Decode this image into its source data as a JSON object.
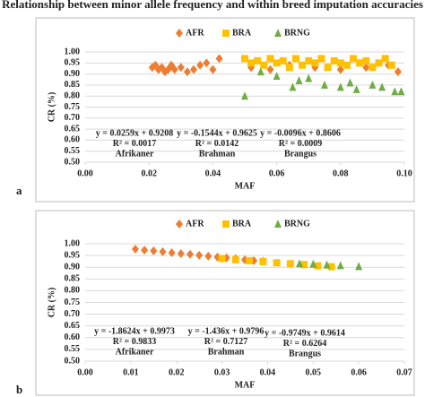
{
  "title": "Relationship between minor allele frequency and within breed imputation accuracies",
  "chart_data": [
    {
      "type": "scatter",
      "panel_label": "a",
      "x_label": "MAF",
      "y_label": "CR (%)",
      "grid": true,
      "xlim": [
        0,
        0.1
      ],
      "xticks": [
        {
          "value": 0,
          "label": "0.00"
        },
        {
          "value": 0.02,
          "label": "0.02"
        },
        {
          "value": 0.04,
          "label": "0.04"
        },
        {
          "value": 0.06,
          "label": "0.06"
        },
        {
          "value": 0.08,
          "label": "0.08"
        },
        {
          "value": 0.1,
          "label": "0.10"
        }
      ],
      "ylim": [
        0.5,
        1
      ],
      "yticks": [
        {
          "value": 0.5,
          "label": "0.50"
        },
        {
          "value": 0.55,
          "label": "0.55"
        },
        {
          "value": 0.6,
          "label": "0.60"
        },
        {
          "value": 0.65,
          "label": "0.65"
        },
        {
          "value": 0.7,
          "label": "0.70"
        },
        {
          "value": 0.75,
          "label": "0.75"
        },
        {
          "value": 0.8,
          "label": "0.80"
        },
        {
          "value": 0.85,
          "label": "0.85"
        },
        {
          "value": 0.9,
          "label": "0.90"
        },
        {
          "value": 0.95,
          "label": "0.95"
        },
        {
          "value": 1,
          "label": "1.00"
        }
      ],
      "series": [
        {
          "name": "AFR",
          "color": "#ed7d31",
          "marker": "diamond",
          "x": [
            0.021,
            0.022,
            0.023,
            0.024,
            0.025,
            0.026,
            0.027,
            0.028,
            0.03,
            0.032,
            0.034,
            0.036,
            0.038,
            0.04,
            0.042,
            0.052,
            0.058,
            0.064,
            0.072,
            0.08,
            0.088,
            0.095,
            0.098
          ],
          "values": [
            0.93,
            0.94,
            0.92,
            0.93,
            0.91,
            0.92,
            0.94,
            0.92,
            0.93,
            0.91,
            0.92,
            0.94,
            0.95,
            0.92,
            0.97,
            0.93,
            0.92,
            0.94,
            0.93,
            0.92,
            0.93,
            0.94,
            0.91
          ]
        },
        {
          "name": "BRA",
          "color": "#ffc000",
          "marker": "square",
          "x": [
            0.05,
            0.052,
            0.054,
            0.056,
            0.058,
            0.06,
            0.062,
            0.064,
            0.066,
            0.068,
            0.07,
            0.072,
            0.074,
            0.076,
            0.078,
            0.08,
            0.082,
            0.084,
            0.086,
            0.088,
            0.09,
            0.092,
            0.094,
            0.096
          ],
          "values": [
            0.97,
            0.95,
            0.96,
            0.94,
            0.97,
            0.95,
            0.96,
            0.93,
            0.97,
            0.94,
            0.96,
            0.95,
            0.97,
            0.93,
            0.96,
            0.95,
            0.94,
            0.97,
            0.95,
            0.96,
            0.93,
            0.95,
            0.97,
            0.94
          ]
        },
        {
          "name": "BRNG",
          "color": "#70ad47",
          "marker": "triangle",
          "x": [
            0.05,
            0.055,
            0.06,
            0.065,
            0.067,
            0.07,
            0.075,
            0.08,
            0.083,
            0.085,
            0.09,
            0.093,
            0.097,
            0.099
          ],
          "values": [
            0.8,
            0.91,
            0.89,
            0.84,
            0.87,
            0.88,
            0.85,
            0.84,
            0.86,
            0.83,
            0.85,
            0.84,
            0.82,
            0.82
          ]
        }
      ],
      "annotations": [
        {
          "equation": "y = 0.0259x + 0.9208",
          "r2": "R² = 0.0017",
          "label": "Afrikaner"
        },
        {
          "equation": "y = -0.1544x + 0.9625",
          "r2": "R² = 0.0142",
          "label": "Brahman"
        },
        {
          "equation": "y = -0.0096x + 0.8606",
          "r2": "R² = 0.0009",
          "label": "Brangus"
        }
      ]
    },
    {
      "type": "scatter",
      "panel_label": "b",
      "x_label": "MAF",
      "y_label": "CR (%)",
      "grid": true,
      "xlim": [
        0,
        0.07
      ],
      "xticks": [
        {
          "value": 0,
          "label": "0.00"
        },
        {
          "value": 0.01,
          "label": "0.01"
        },
        {
          "value": 0.02,
          "label": "0.02"
        },
        {
          "value": 0.03,
          "label": "0.03"
        },
        {
          "value": 0.04,
          "label": "0.04"
        },
        {
          "value": 0.05,
          "label": "0.05"
        },
        {
          "value": 0.06,
          "label": "0.06"
        },
        {
          "value": 0.07,
          "label": "0.07"
        }
      ],
      "ylim": [
        0.5,
        1
      ],
      "yticks": [
        {
          "value": 0.5,
          "label": "0.50"
        },
        {
          "value": 0.55,
          "label": "0.55"
        },
        {
          "value": 0.6,
          "label": "0.60"
        },
        {
          "value": 0.65,
          "label": "0.65"
        },
        {
          "value": 0.7,
          "label": "0.70"
        },
        {
          "value": 0.75,
          "label": "0.75"
        },
        {
          "value": 0.8,
          "label": "0.80"
        },
        {
          "value": 0.85,
          "label": "0.85"
        },
        {
          "value": 0.9,
          "label": "0.90"
        },
        {
          "value": 0.95,
          "label": "0.95"
        },
        {
          "value": 1,
          "label": "1.00"
        }
      ],
      "series": [
        {
          "name": "AFR",
          "color": "#ed7d31",
          "marker": "diamond",
          "x": [
            0.011,
            0.013,
            0.015,
            0.017,
            0.019,
            0.021,
            0.023,
            0.025,
            0.027,
            0.029,
            0.031,
            0.033,
            0.035,
            0.037,
            0.039
          ],
          "values": [
            0.977,
            0.973,
            0.97,
            0.966,
            0.962,
            0.958,
            0.955,
            0.951,
            0.947,
            0.943,
            0.94,
            0.936,
            0.932,
            0.928,
            0.925
          ]
        },
        {
          "name": "BRA",
          "color": "#ffc000",
          "marker": "square",
          "x": [
            0.03,
            0.033,
            0.036,
            0.039,
            0.042,
            0.045,
            0.048,
            0.051,
            0.054
          ],
          "values": [
            0.937,
            0.932,
            0.928,
            0.924,
            0.919,
            0.915,
            0.911,
            0.906,
            0.902
          ]
        },
        {
          "name": "BRNG",
          "color": "#70ad47",
          "marker": "triangle",
          "x": [
            0.047,
            0.05,
            0.053,
            0.056,
            0.06
          ],
          "values": [
            0.915,
            0.913,
            0.91,
            0.907,
            0.903
          ]
        }
      ],
      "annotations": [
        {
          "equation": "y = -1.8624x + 0.9973",
          "r2": "R² = 0.9833",
          "label": "Afrikaner"
        },
        {
          "equation": "y = -1.436x + 0.9796",
          "r2": "R² = 0.7127",
          "label": "Brahman"
        },
        {
          "equation": "y = -0.9749x + 0.9614",
          "r2": "R² = 0.6264",
          "label": "Brangus"
        }
      ]
    }
  ]
}
